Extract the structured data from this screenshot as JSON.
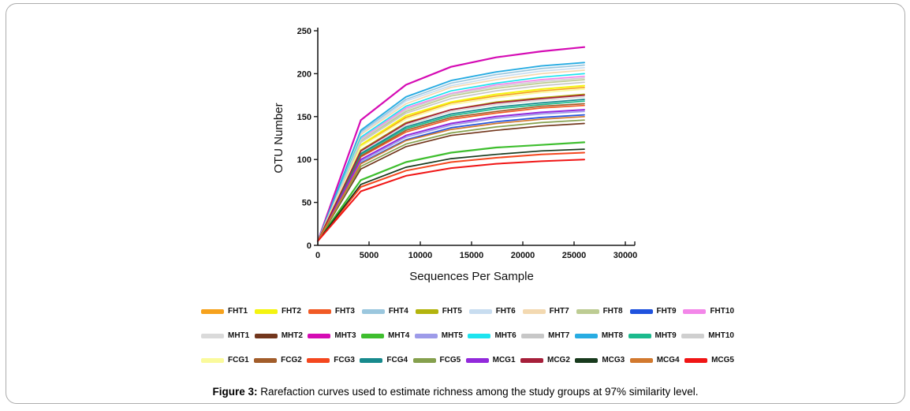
{
  "figure": {
    "caption_label": "Figure 3:",
    "caption_text": " Rarefaction curves used to estimate richness among the study groups at 97% similarity level."
  },
  "chart_data": {
    "type": "line",
    "title": "",
    "xlabel": "Sequences Per Sample",
    "ylabel": "OTU Number",
    "xlim": [
      0,
      30000
    ],
    "ylim": [
      0,
      250
    ],
    "x_ticks": [
      0,
      5000,
      10000,
      15000,
      20000,
      25000,
      30000
    ],
    "y_ticks": [
      0,
      50,
      100,
      150,
      200,
      250
    ],
    "grid": false,
    "legend_position": "bottom",
    "legend_rows": [
      10,
      10,
      10
    ],
    "axis_color": "#1a1a1a",
    "x": [
      0,
      4200,
      8600,
      13000,
      17400,
      21800,
      26000
    ],
    "series": [
      {
        "name": "FHT1",
        "color": "#F6A21D",
        "lw": 1.7,
        "values": [
          5,
          116,
          149,
          166,
          174,
          180,
          184
        ]
      },
      {
        "name": "FHT2",
        "color": "#F4F410",
        "lw": 2.0,
        "values": [
          5,
          117,
          151,
          167,
          176,
          182,
          186
        ]
      },
      {
        "name": "FHT3",
        "color": "#F15A25",
        "lw": 1.7,
        "values": [
          5,
          103,
          132,
          147,
          154,
          160,
          163
        ]
      },
      {
        "name": "FHT4",
        "color": "#9BC7DE",
        "lw": 1.7,
        "values": [
          5,
          132,
          170,
          189,
          199,
          206,
          210
        ]
      },
      {
        "name": "FHT5",
        "color": "#B3B40E",
        "lw": 1.7,
        "values": [
          5,
          111,
          143,
          158,
          167,
          172,
          176
        ]
      },
      {
        "name": "FHT6",
        "color": "#C8DDF0",
        "lw": 1.7,
        "values": [
          5,
          130,
          168,
          186,
          196,
          203,
          207
        ]
      },
      {
        "name": "FHT7",
        "color": "#F3D9B1",
        "lw": 1.7,
        "values": [
          5,
          129,
          165,
          184,
          193,
          200,
          204
        ]
      },
      {
        "name": "FHT8",
        "color": "#BDCC93",
        "lw": 1.7,
        "values": [
          5,
          122,
          156,
          174,
          183,
          189,
          193
        ]
      },
      {
        "name": "FHT9",
        "color": "#1F52DE",
        "lw": 1.7,
        "values": [
          5,
          96,
          123,
          137,
          144,
          149,
          152
        ]
      },
      {
        "name": "FHT10",
        "color": "#F387E9",
        "lw": 1.7,
        "values": [
          5,
          124,
          160,
          177,
          187,
          193,
          197
        ]
      },
      {
        "name": "MHT1",
        "color": "#DADADA",
        "lw": 1.7,
        "values": [
          5,
          109,
          140,
          156,
          164,
          169,
          173
        ]
      },
      {
        "name": "MHT2",
        "color": "#72361C",
        "lw": 1.7,
        "values": [
          5,
          89,
          115,
          128,
          134,
          139,
          142
        ]
      },
      {
        "name": "MHT3",
        "color": "#D50BB4",
        "lw": 2.2,
        "values": [
          5,
          146,
          187,
          208,
          219,
          226,
          231
        ]
      },
      {
        "name": "MHT4",
        "color": "#3EBE2E",
        "lw": 2.2,
        "values": [
          5,
          76,
          97,
          108,
          114,
          117,
          120
        ]
      },
      {
        "name": "MHT5",
        "color": "#9D9BE9",
        "lw": 1.7,
        "values": [
          5,
          98,
          126,
          140,
          148,
          153,
          156
        ]
      },
      {
        "name": "MHT6",
        "color": "#1DE4EF",
        "lw": 1.7,
        "values": [
          5,
          126,
          162,
          180,
          189,
          196,
          200
        ]
      },
      {
        "name": "MHT7",
        "color": "#C7C7C7",
        "lw": 1.7,
        "values": [
          5,
          120,
          154,
          171,
          180,
          186,
          190
        ]
      },
      {
        "name": "MHT8",
        "color": "#28ACE2",
        "lw": 1.9,
        "values": [
          5,
          134,
          173,
          192,
          202,
          209,
          213
        ]
      },
      {
        "name": "MHT9",
        "color": "#1BBA8D",
        "lw": 1.7,
        "values": [
          5,
          106,
          136,
          151,
          159,
          164,
          168
        ]
      },
      {
        "name": "MHT10",
        "color": "#CFCFCF",
        "lw": 1.7,
        "values": [
          5,
          123,
          158,
          176,
          185,
          191,
          195
        ]
      },
      {
        "name": "FCG1",
        "color": "#FAFA9C",
        "lw": 1.7,
        "values": [
          5,
          115,
          147,
          164,
          172,
          178,
          182
        ]
      },
      {
        "name": "FCG2",
        "color": "#A25D2A",
        "lw": 1.7,
        "values": [
          5,
          104,
          134,
          149,
          156,
          162,
          165
        ]
      },
      {
        "name": "FCG3",
        "color": "#F4471E",
        "lw": 2.0,
        "values": [
          5,
          68,
          87,
          97,
          102,
          106,
          108
        ]
      },
      {
        "name": "FCG4",
        "color": "#178A8D",
        "lw": 1.7,
        "values": [
          5,
          107,
          138,
          153,
          161,
          166,
          170
        ]
      },
      {
        "name": "FCG5",
        "color": "#85A04D",
        "lw": 1.7,
        "values": [
          5,
          92,
          118,
          131,
          138,
          143,
          146
        ]
      },
      {
        "name": "MCG1",
        "color": "#9229DB",
        "lw": 2.0,
        "values": [
          5,
          100,
          128,
          142,
          150,
          155,
          158
        ]
      },
      {
        "name": "MCG2",
        "color": "#A61F3A",
        "lw": 1.7,
        "values": [
          5,
          110,
          142,
          158,
          166,
          171,
          175
        ]
      },
      {
        "name": "MCG3",
        "color": "#183A1D",
        "lw": 1.7,
        "values": [
          5,
          71,
          91,
          101,
          106,
          110,
          112
        ]
      },
      {
        "name": "MCG4",
        "color": "#D2792E",
        "lw": 1.7,
        "values": [
          5,
          95,
          122,
          135,
          142,
          147,
          150
        ]
      },
      {
        "name": "MCG5",
        "color": "#F01515",
        "lw": 2.0,
        "values": [
          5,
          63,
          81,
          90,
          95,
          98,
          100
        ]
      }
    ]
  }
}
